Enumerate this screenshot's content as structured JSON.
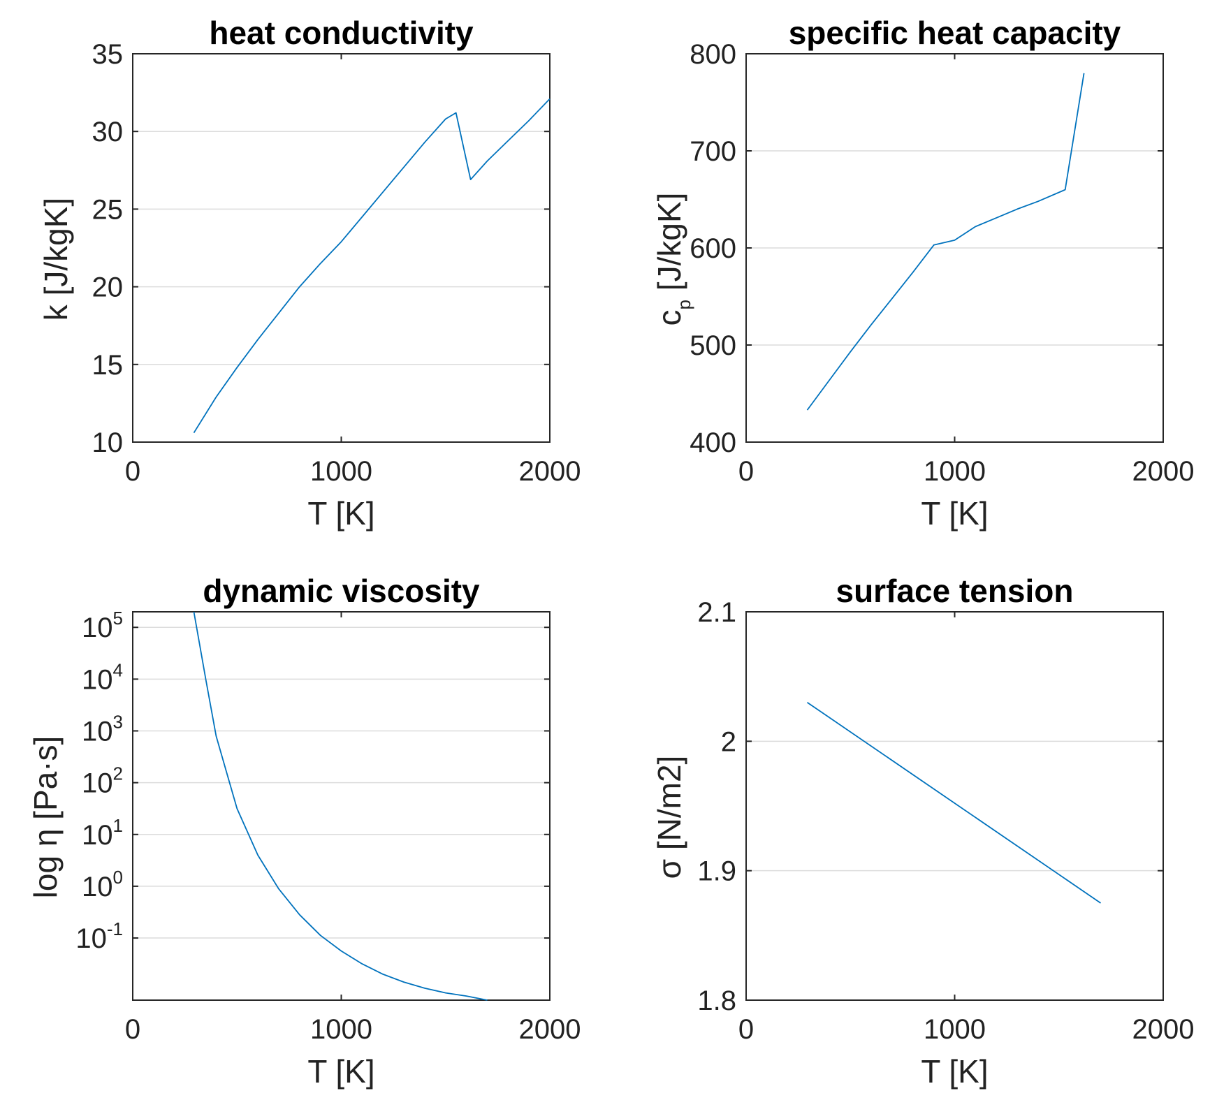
{
  "colors": {
    "series": "#0072bd"
  },
  "chart_data": [
    {
      "type": "line",
      "title": "heat conductivity",
      "xlabel": "T [K]",
      "ylabel": "k [J/kgK]",
      "xlim": [
        0,
        2000
      ],
      "ylim": [
        10,
        35
      ],
      "xticks": [
        "0",
        "1000",
        "2000"
      ],
      "yticks": [
        "10",
        "15",
        "20",
        "25",
        "30",
        "35"
      ],
      "x": [
        293,
        400,
        500,
        600,
        700,
        800,
        900,
        1000,
        1100,
        1200,
        1300,
        1400,
        1500,
        1550,
        1620,
        1700,
        1800,
        1900,
        2000
      ],
      "y": [
        10.6,
        12.9,
        14.8,
        16.6,
        18.3,
        20.0,
        21.5,
        22.9,
        24.5,
        26.1,
        27.7,
        29.3,
        30.8,
        31.2,
        26.9,
        28.1,
        29.4,
        30.7,
        32.1
      ]
    },
    {
      "type": "line",
      "title": "specific heat capacity",
      "xlabel": "T [K]",
      "ylabel": "c",
      "ylabel_subscript": "p",
      "ylabel_suffix": " [J/kgK]",
      "xlim": [
        0,
        2000
      ],
      "ylim": [
        400,
        800
      ],
      "xticks": [
        "0",
        "1000",
        "2000"
      ],
      "yticks": [
        "400",
        "500",
        "600",
        "700",
        "800"
      ],
      "x": [
        293,
        400,
        500,
        600,
        700,
        800,
        900,
        1000,
        1100,
        1200,
        1300,
        1400,
        1530,
        1620
      ],
      "y": [
        433,
        464,
        493,
        521,
        548,
        575,
        603,
        608,
        622,
        631,
        640,
        648,
        660,
        780
      ]
    },
    {
      "type": "line",
      "title": "dynamic viscosity",
      "xlabel": "T [K]",
      "ylabel": "log η [Pa·s]",
      "yscale": "log",
      "xlim": [
        0,
        2000
      ],
      "ylim_log10": [
        -2.2,
        5.3
      ],
      "xticks": [
        "0",
        "1000",
        "2000"
      ],
      "yticks_base": "10",
      "yticks_exp": [
        "-1",
        "0",
        "1",
        "2",
        "3",
        "4",
        "5"
      ],
      "x": [
        293,
        350,
        400,
        450,
        500,
        600,
        700,
        800,
        900,
        1000,
        1100,
        1200,
        1300,
        1400,
        1500,
        1600,
        1700
      ],
      "y_log10": [
        5.3,
        4.0,
        2.9,
        2.2,
        1.5,
        0.6,
        -0.05,
        -0.55,
        -0.95,
        -1.25,
        -1.5,
        -1.7,
        -1.85,
        -1.97,
        -2.06,
        -2.12,
        -2.2
      ]
    },
    {
      "type": "line",
      "title": "surface tension",
      "xlabel": "T [K]",
      "ylabel": "σ [N/m2]",
      "xlim": [
        0,
        2000
      ],
      "ylim": [
        1.8,
        2.1
      ],
      "xticks": [
        "0",
        "1000",
        "2000"
      ],
      "yticks": [
        "1.8",
        "1.9",
        "2",
        "2.1"
      ],
      "x": [
        293,
        1700
      ],
      "y": [
        2.03,
        1.875
      ]
    }
  ]
}
